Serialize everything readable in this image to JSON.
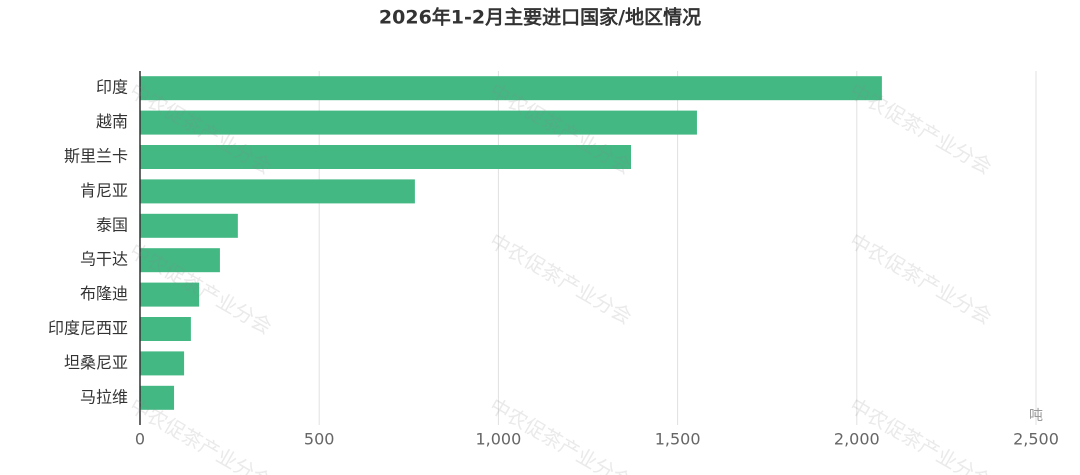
{
  "chart_data": {
    "type": "bar",
    "orientation": "horizontal",
    "title": "2026年1-2月主要进口国家/地区情况",
    "categories": [
      "印度",
      "越南",
      "斯里兰卡",
      "肯尼亚",
      "泰国",
      "乌干达",
      "布隆迪",
      "印度尼西亚",
      "坦桑尼亚",
      "马拉维"
    ],
    "values": [
      2070,
      1554,
      1370,
      767,
      273,
      223,
      165,
      142,
      123,
      95
    ],
    "color": "#43b883",
    "xlim": [
      0,
      2500
    ],
    "xticks": [
      0,
      500,
      {
        "value": 1000,
        "label": "1,000"
      },
      {
        "value": 1500,
        "label": "1,500"
      },
      {
        "value": 2000,
        "label": "2,000"
      },
      {
        "value": 2500,
        "label": "2,500"
      }
    ],
    "x_unit": "吨",
    "grid": true,
    "watermark": "中农促茶产业分会"
  }
}
